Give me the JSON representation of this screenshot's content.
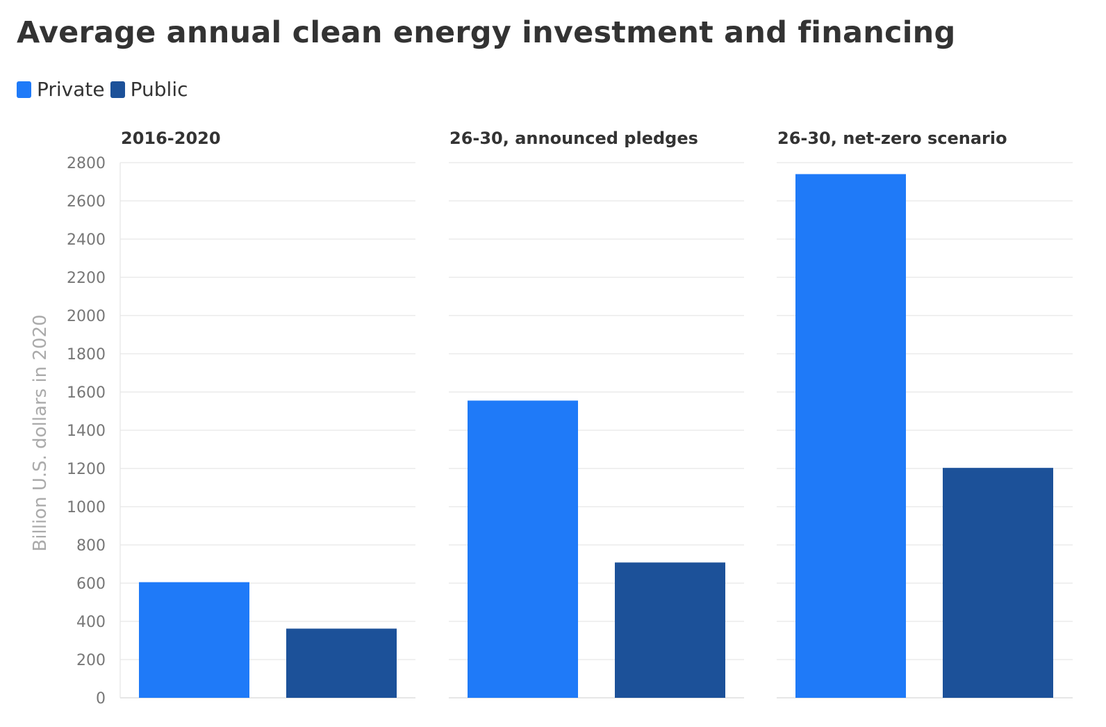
{
  "chart_data": {
    "type": "bar",
    "title": "Average annual clean energy investment and financing",
    "ylabel": "Billion U.S. dollars in 2020",
    "ylim": [
      0,
      2800
    ],
    "yticks": [
      0,
      200,
      400,
      600,
      800,
      1000,
      1200,
      1400,
      1600,
      1800,
      2000,
      2200,
      2400,
      2600,
      2800
    ],
    "grid": true,
    "legend_position": "top-left",
    "series": [
      {
        "name": "Private",
        "color": "#1f7af8"
      },
      {
        "name": "Public",
        "color": "#1c5199"
      }
    ],
    "facets": [
      {
        "title": "2016-2020",
        "values": {
          "Private": 605,
          "Public": 362
        }
      },
      {
        "title": "26-30, announced pledges",
        "values": {
          "Private": 1555,
          "Public": 708
        }
      },
      {
        "title": "26-30, net-zero scenario",
        "values": {
          "Private": 2740,
          "Public": 1203
        }
      }
    ]
  }
}
